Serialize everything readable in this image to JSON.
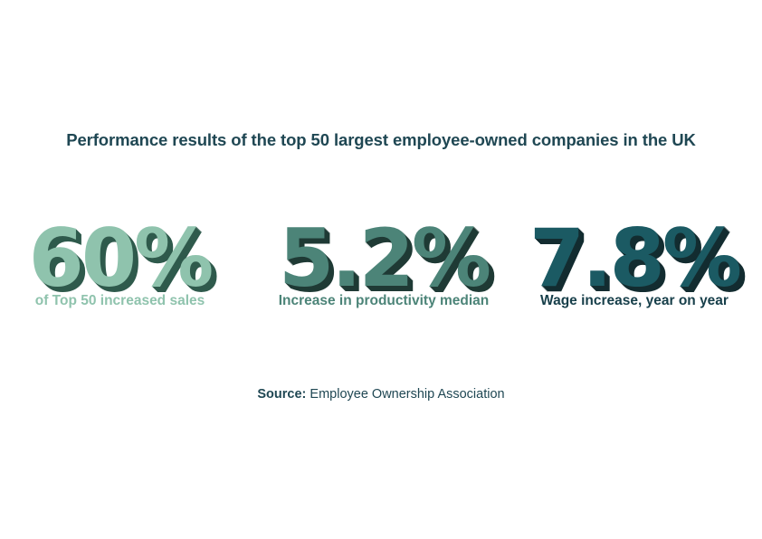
{
  "title": "Performance results of the top 50 largest employee-owned companies in the UK",
  "stats": [
    {
      "value": "60%",
      "label": "of Top 50 increased sales",
      "color": "#8fc3ad",
      "shadow_color": "#2f5a4c"
    },
    {
      "value": "5.2%",
      "label": "Increase in productivity median",
      "color": "#4c8478",
      "shadow_color": "#1f3a35"
    },
    {
      "value": "7.8%",
      "label": "Wage increase, year on year",
      "color": "#1b5a63",
      "shadow_color": "#132c30"
    }
  ],
  "source": {
    "prefix": "Source:",
    "text": "Employee Ownership Association"
  }
}
